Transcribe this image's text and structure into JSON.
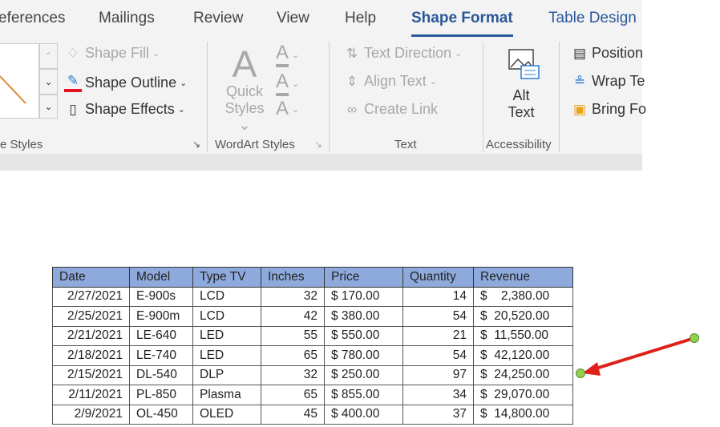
{
  "tabs": [
    {
      "label": "eferences"
    },
    {
      "label": "Mailings"
    },
    {
      "label": "Review"
    },
    {
      "label": "View"
    },
    {
      "label": "Help"
    },
    {
      "label": "Shape Format",
      "active": true
    },
    {
      "label": "Table Design"
    }
  ],
  "ribbon": {
    "shape_styles": {
      "fill": "Shape Fill",
      "outline": "Shape Outline",
      "effects": "Shape Effects",
      "group": "e Styles",
      "outline_color": "#e81123"
    },
    "wordart": {
      "quick1": "Quick",
      "quick2": "Styles",
      "group": "WordArt Styles"
    },
    "text": {
      "direction": "Text Direction",
      "align": "Align Text",
      "link": "Create Link",
      "group": "Text"
    },
    "accessibility": {
      "alt1": "Alt",
      "alt2": "Text",
      "group": "Accessibility"
    },
    "arrange": {
      "position": "Position",
      "wrap": "Wrap Te",
      "bring": "Bring Fo"
    }
  },
  "table": {
    "headers": [
      "Date",
      "Model",
      "Type TV",
      "Inches",
      "Price",
      "Quantity",
      "Revenue"
    ],
    "rows": [
      [
        "2/27/2021",
        "E-900s",
        "LCD",
        "32",
        "$ 170.00",
        "14",
        "$    2,380.00"
      ],
      [
        "2/25/2021",
        "E-900m",
        "LCD",
        "42",
        "$ 380.00",
        "54",
        "$  20,520.00"
      ],
      [
        "2/21/2021",
        "LE-640",
        "LED",
        "55",
        "$ 550.00",
        "21",
        "$  11,550.00"
      ],
      [
        "2/18/2021",
        "LE-740",
        "LED",
        "65",
        "$ 780.00",
        "54",
        "$  42,120.00"
      ],
      [
        "2/15/2021",
        "DL-540",
        "DLP",
        "32",
        "$ 250.00",
        "97",
        "$  24,250.00"
      ],
      [
        "2/11/2021",
        "PL-850",
        "Plasma",
        "65",
        "$ 855.00",
        "34",
        "$  29,070.00"
      ],
      [
        "2/9/2021",
        "OL-450",
        "OLED",
        "45",
        "$ 400.00",
        "37",
        "$  14,800.00"
      ]
    ]
  },
  "colors": {
    "accent": "#2b579a",
    "header": "#8eaadc",
    "arrow": "#e0201b",
    "handle": "#92d050"
  }
}
